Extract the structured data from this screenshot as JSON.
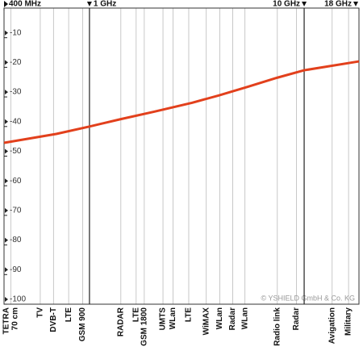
{
  "chart_data": {
    "type": "line",
    "x_log": true,
    "xlim": [
      400,
      18000
    ],
    "xticks": [
      {
        "value": 400,
        "label": "400 MHz"
      },
      {
        "value": 1000,
        "label": "1 GHz"
      },
      {
        "value": 10000,
        "label": "10 GHz"
      },
      {
        "value": 18000,
        "label": "18 GHz"
      }
    ],
    "ylim": [
      -100,
      0
    ],
    "yticks": [
      -10,
      -20,
      -30,
      -40,
      -50,
      -60,
      -70,
      -80,
      -90,
      -100
    ],
    "series": [
      {
        "color": "#e2401c",
        "x": [
          400,
          700,
          1000,
          1400,
          2000,
          3000,
          4000,
          5500,
          7500,
          10000,
          18000
        ],
        "values": [
          -45.5,
          -42.5,
          -40,
          -37.5,
          -35,
          -32,
          -29.5,
          -26.5,
          -23.5,
          -21,
          -18
        ]
      }
    ],
    "bands": {
      "x": [
        430,
        590,
        680,
        800,
        930,
        1400,
        1650,
        1800,
        2200,
        2450,
        2900,
        3500,
        4050,
        4650,
        5300,
        7500,
        9200,
        13500,
        16100
      ],
      "labels": [
        [
          "TETRA",
          "70 cm"
        ],
        "TV",
        "DVB-T",
        "LTE",
        "GSM 900",
        "RADAR",
        "LTE",
        "GSM 1800",
        "UMTS",
        "WLan",
        "LTE",
        "WiMAX",
        "WLan",
        "Radar",
        "WLan",
        "Radio link",
        "Radar",
        "Avigation",
        "Military"
      ]
    },
    "annotation": "© YSHIELD GmbH & Co. KG"
  }
}
